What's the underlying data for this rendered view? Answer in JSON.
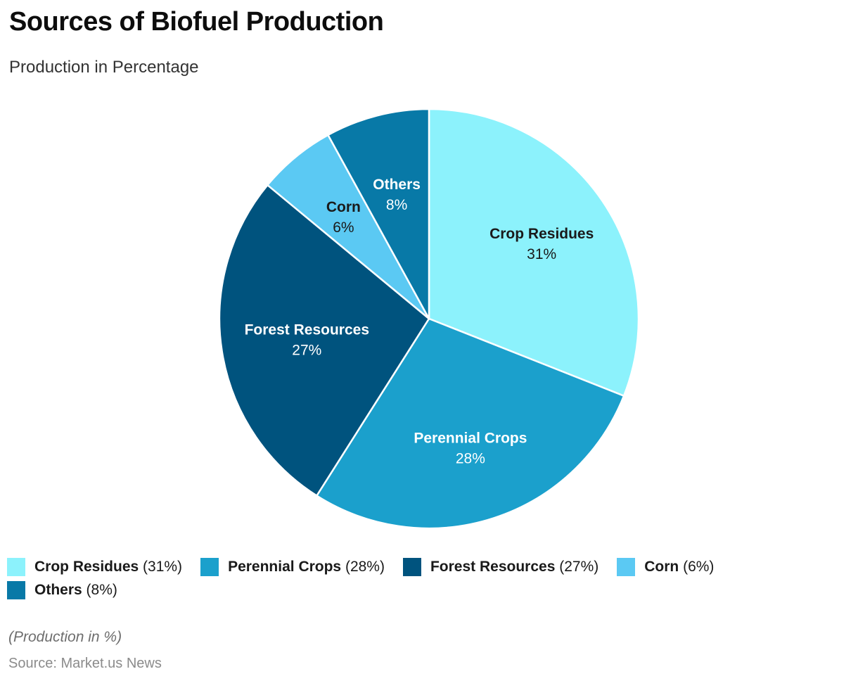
{
  "header": {
    "title": "Sources of Biofuel Production",
    "subtitle": "Production in Percentage"
  },
  "chart_data": {
    "type": "pie",
    "title": "Sources of Biofuel Production",
    "subtitle": "Production in Percentage",
    "unit": "%",
    "direction": "clockwise",
    "start_angle_deg": 0,
    "slice_border_color": "#FFFFFF",
    "legend_position": "bottom",
    "slices": [
      {
        "id": "crop-residues",
        "label": "Crop Residues",
        "value": 31,
        "pct_text": "31%",
        "color": "#8CF2FC",
        "label_color": "#1A1A1A",
        "label_r": 0.65
      },
      {
        "id": "perennial-crops",
        "label": "Perennial Crops",
        "value": 28,
        "pct_text": "28%",
        "color": "#1BA0CC",
        "label_color": "#FFFFFF",
        "label_r": 0.64
      },
      {
        "id": "forest-resources",
        "label": "Forest Resources",
        "value": 27,
        "pct_text": "27%",
        "color": "#00537E",
        "label_color": "#FFFFFF",
        "label_r": 0.59
      },
      {
        "id": "corn",
        "label": "Corn",
        "value": 6,
        "pct_text": "6%",
        "color": "#5BC9F3",
        "label_color": "#1A1A1A",
        "label_r": 0.64
      },
      {
        "id": "others",
        "label": "Others",
        "value": 8,
        "pct_text": "8%",
        "color": "#0879A7",
        "label_color": "#FFFFFF",
        "label_r": 0.62
      }
    ]
  },
  "legend": {
    "items": [
      {
        "id": "crop-residues",
        "swatch_color": "#8CF2FC",
        "label": "Crop Residues",
        "suffix": "(31%)"
      },
      {
        "id": "perennial-crops",
        "swatch_color": "#1BA0CC",
        "label": "Perennial Crops",
        "suffix": "(28%)"
      },
      {
        "id": "forest-resources",
        "swatch_color": "#00537E",
        "label": "Forest Resources",
        "suffix": "(27%)"
      },
      {
        "id": "corn",
        "swatch_color": "#5BC9F3",
        "label": "Corn",
        "suffix": "(6%)"
      },
      {
        "id": "others",
        "swatch_color": "#0879A7",
        "label": "Others",
        "suffix": "(8%)"
      }
    ]
  },
  "footer": {
    "note": "(Production in %)",
    "source": "Source: Market.us News"
  }
}
